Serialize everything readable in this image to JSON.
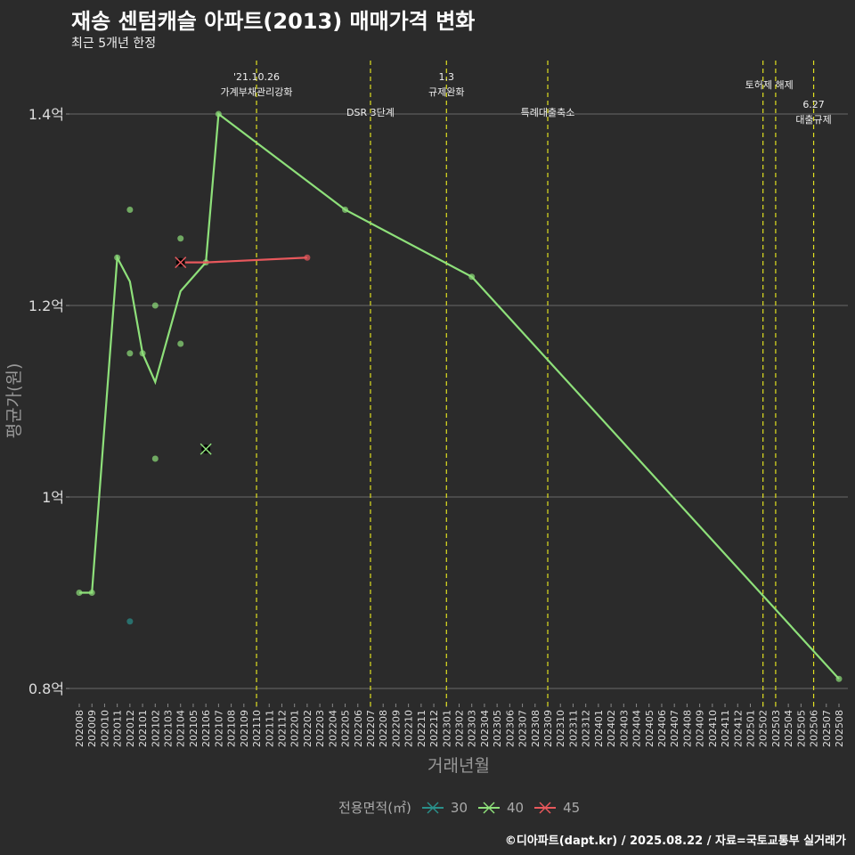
{
  "title": "재송 센텀캐슬 아파트(2013) 매매가격 변화",
  "subtitle": "최근 5개년 한정",
  "footer": "©디아파트(dapt.kr) / 2025.08.22 / 자료=국토교통부 실거래가",
  "chart_data": {
    "type": "line",
    "title": "재송 센텀캐슬 아파트(2013) 매매가격 변화",
    "xlabel": "거래년월",
    "ylabel": "평균가(원)",
    "ylim": [
      0.78,
      1.46
    ],
    "yticks": [
      {
        "v": 0.8,
        "label": "0.8억"
      },
      {
        "v": 1.0,
        "label": "1억"
      },
      {
        "v": 1.2,
        "label": "1.2억"
      },
      {
        "v": 1.4,
        "label": "1.4억"
      }
    ],
    "categories": [
      "202008",
      "202009",
      "202010",
      "202011",
      "202012",
      "202101",
      "202102",
      "202103",
      "202104",
      "202105",
      "202106",
      "202107",
      "202108",
      "202109",
      "202110",
      "202111",
      "202112",
      "202201",
      "202202",
      "202203",
      "202204",
      "202205",
      "202206",
      "202207",
      "202208",
      "202209",
      "202210",
      "202211",
      "202212",
      "202301",
      "202302",
      "202303",
      "202304",
      "202305",
      "202306",
      "202307",
      "202308",
      "202309",
      "202310",
      "202311",
      "202312",
      "202401",
      "202402",
      "202403",
      "202404",
      "202405",
      "202406",
      "202407",
      "202408",
      "202409",
      "202410",
      "202411",
      "202412",
      "202501",
      "202502",
      "202503",
      "202504",
      "202505",
      "202506",
      "202507",
      "202508"
    ],
    "legend": {
      "title": "전용면적(㎡)",
      "position": "bottom"
    },
    "series": [
      {
        "name": "30",
        "color": "#2a8f8a",
        "line": [],
        "points": [
          {
            "x": "202012",
            "y": 0.87
          }
        ],
        "crosses": []
      },
      {
        "name": "40",
        "color": "#8ee07a",
        "line": [
          {
            "x": "202008",
            "y": 0.9
          },
          {
            "x": "202009",
            "y": 0.9
          },
          {
            "x": "202011",
            "y": 1.25
          },
          {
            "x": "202012",
            "y": 1.225
          },
          {
            "x": "202101",
            "y": 1.15
          },
          {
            "x": "202102",
            "y": 1.12
          },
          {
            "x": "202104",
            "y": 1.215
          },
          {
            "x": "202106",
            "y": 1.245
          },
          {
            "x": "202107",
            "y": 1.4
          },
          {
            "x": "202205",
            "y": 1.3
          },
          {
            "x": "202303",
            "y": 1.23
          },
          {
            "x": "202508",
            "y": 0.81
          }
        ],
        "points": [
          {
            "x": "202008",
            "y": 0.9
          },
          {
            "x": "202009",
            "y": 0.9
          },
          {
            "x": "202011",
            "y": 1.25
          },
          {
            "x": "202012",
            "y": 1.3
          },
          {
            "x": "202012",
            "y": 1.15
          },
          {
            "x": "202101",
            "y": 1.15
          },
          {
            "x": "202102",
            "y": 1.2
          },
          {
            "x": "202102",
            "y": 1.04
          },
          {
            "x": "202104",
            "y": 1.27
          },
          {
            "x": "202104",
            "y": 1.16
          },
          {
            "x": "202106",
            "y": 1.245
          },
          {
            "x": "202107",
            "y": 1.4
          },
          {
            "x": "202205",
            "y": 1.3
          },
          {
            "x": "202303",
            "y": 1.23
          },
          {
            "x": "202508",
            "y": 0.81
          }
        ],
        "crosses": [
          {
            "x": "202106",
            "y": 1.05
          }
        ]
      },
      {
        "name": "45",
        "color": "#e8585c",
        "line": [
          {
            "x": "202104",
            "y": 1.245
          },
          {
            "x": "202106",
            "y": 1.245
          },
          {
            "x": "202202",
            "y": 1.25
          }
        ],
        "points": [
          {
            "x": "202202",
            "y": 1.25
          }
        ],
        "crosses": [
          {
            "x": "202104",
            "y": 1.245
          }
        ]
      }
    ],
    "events": [
      {
        "x": "202110",
        "lines": [
          "'21.10.26",
          "가계부채관리강화"
        ]
      },
      {
        "x": "202207",
        "lines": [
          "DSR 3단계"
        ]
      },
      {
        "x": "202301",
        "lines": [
          "1.3",
          "규제완화"
        ]
      },
      {
        "x": "202309",
        "lines": [
          "특례대출축소"
        ]
      },
      {
        "x": "202502",
        "lines": [
          "토허제 해제"
        ]
      },
      {
        "x": "202503",
        "lines": []
      },
      {
        "x": "202506",
        "lines": [
          "6.27",
          "대출규제"
        ]
      }
    ],
    "event_color": "#e0e020"
  }
}
